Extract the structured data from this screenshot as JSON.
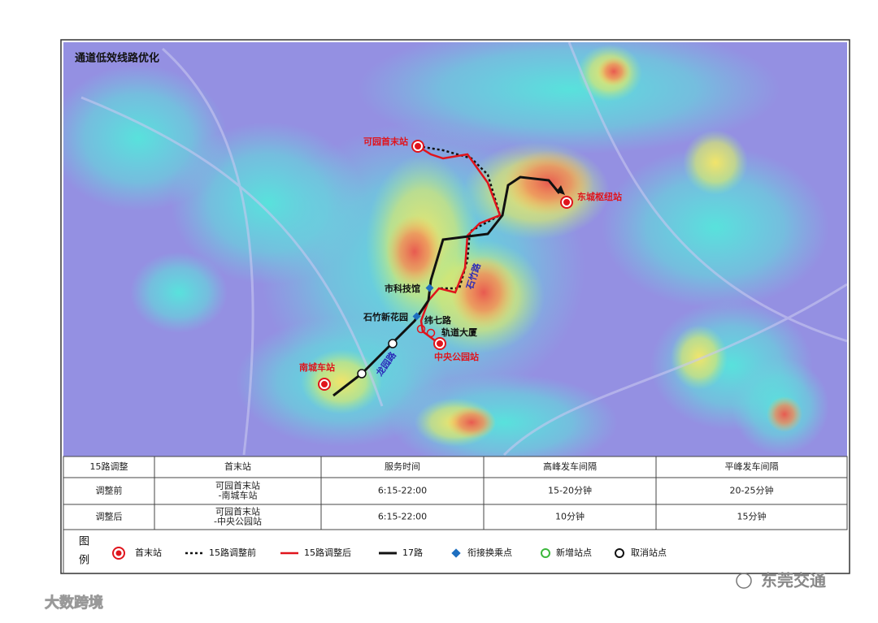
{
  "title": "通道低效线路优化",
  "places": [
    "可园首末站",
    "东城枢纽站",
    "市科技馆",
    "石竹新花园",
    "纬七路",
    "轨道大厦",
    "中央公园站",
    "南城车站"
  ],
  "roads": [
    "石竹路",
    "龙园路"
  ],
  "table": {
    "header": [
      "15路调整",
      "首末站",
      "服务时间",
      "高峰发车间隔",
      "平峰发车间隔"
    ],
    "rows": [
      [
        "调整前",
        [
          "可园首末站",
          "-南城车站"
        ],
        "6:15-22:00",
        "15-20分钟",
        "20-25分钟"
      ],
      [
        "调整后",
        [
          "可园首末站",
          "-中央公园站"
        ],
        "6:15-22:00",
        "10分钟",
        "15分钟"
      ]
    ]
  },
  "legend": {
    "title": [
      "图",
      "例"
    ],
    "items": [
      "首末站",
      "15路调整前",
      "15路调整后",
      "17路",
      "衔接换乘点",
      "新增站点",
      "取消站点"
    ]
  },
  "watermarks": [
    "东莞交通",
    "大数跨境"
  ]
}
